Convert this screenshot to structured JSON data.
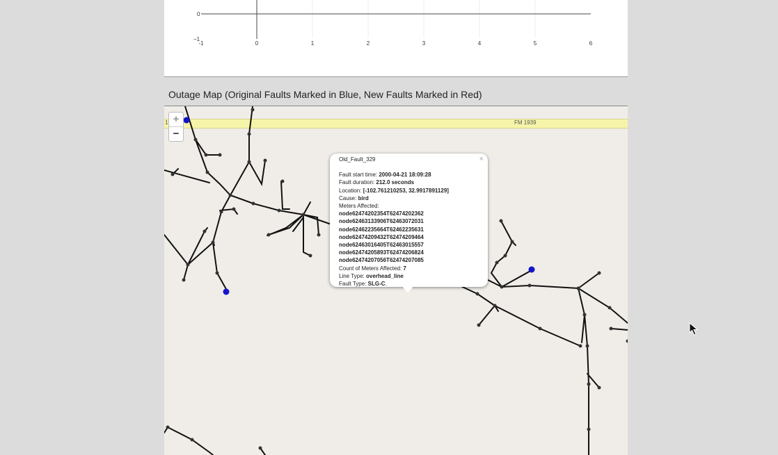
{
  "chart": {
    "x_ticks": [
      "-1",
      "0",
      "1",
      "2",
      "3",
      "4",
      "5",
      "6"
    ],
    "y_tick_top": "0",
    "y_tick_bottom": "−1"
  },
  "map": {
    "title": "Outage Map (Original Faults Marked in Blue, New Faults Marked in Red)",
    "road_label": "FM 1939",
    "road_label_left": "19",
    "zoom_in": "+",
    "zoom_out": "−",
    "marker_color": "#1414c8",
    "line_color": "#111111"
  },
  "popup": {
    "title": "Old_Fault_329",
    "close": "×",
    "start_label": "Fault start time:",
    "start_value": "2000-04-21 18:09:28",
    "duration_label": "Fault duration:",
    "duration_value": "212.0 seconds",
    "location_label": "Location:",
    "location_value": "[-102.761210253, 32.9917891129]",
    "cause_label": "Cause:",
    "cause_value": "bird",
    "meters_label": "Meters Affected:",
    "meters": [
      "node62474202354T62474202362",
      "node62463133906T62463072031",
      "node62462235664T62462235631",
      "node62474209432T62474209464",
      "node62463016405T62463015557",
      "node62474205893T62474206824",
      "node62474207056T62474207085"
    ],
    "count_label": "Count of Meters Affected:",
    "count_value": "7",
    "line_type_label": "Line Type:",
    "line_type_value": "overhead_line",
    "fault_type_label": "Fault Type:",
    "fault_type_value": "SLG-C",
    "fault_type_suffix": "."
  }
}
